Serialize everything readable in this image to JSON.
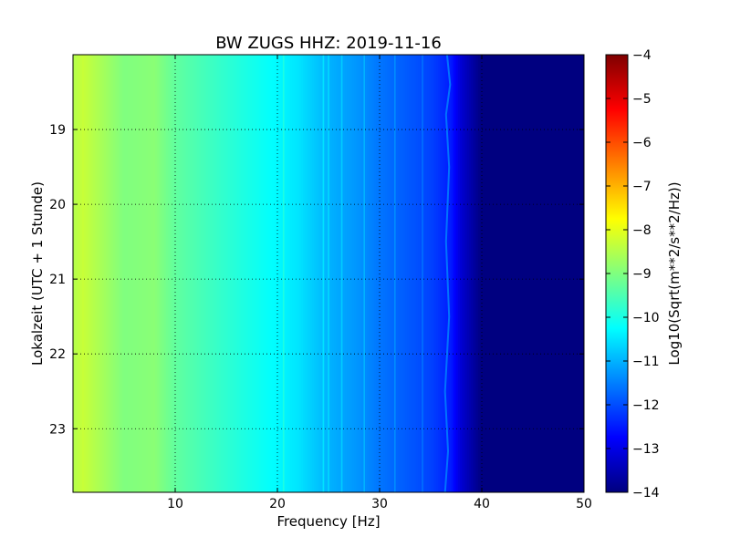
{
  "chart_data": {
    "type": "heatmap",
    "title": "BW ZUGS HHZ: 2019-11-16",
    "xlabel": "Frequency [Hz]",
    "ylabel": "Lokalzeit (UTC + 1 Stunde)",
    "xlim": [
      0,
      50
    ],
    "ylim": [
      18.0,
      23.85
    ],
    "y_inverted": true,
    "grid": true,
    "x_ticks": [
      10,
      20,
      30,
      40,
      50
    ],
    "x_tick_labels": [
      "10",
      "20",
      "30",
      "40",
      "50"
    ],
    "y_ticks": [
      19,
      20,
      21,
      22,
      23
    ],
    "y_tick_labels": [
      "19",
      "20",
      "21",
      "22",
      "23"
    ],
    "colormap": "jet",
    "value_profile_by_frequency": {
      "frequency_hz": [
        0,
        1,
        5,
        8,
        10,
        15,
        20,
        22,
        25,
        28,
        30,
        33,
        35,
        37,
        38,
        39,
        40,
        50
      ],
      "log10_amplitude": [
        -8.5,
        -8.3,
        -9.0,
        -8.9,
        -9.3,
        -9.8,
        -10.3,
        -10.5,
        -11.0,
        -11.3,
        -11.6,
        -11.9,
        -12.1,
        -12.5,
        -13.2,
        -13.6,
        -14.0,
        -14.0
      ]
    },
    "persistent_lines_hz": [
      20.6,
      24.5,
      25.0,
      26.3,
      28.5,
      31.5,
      34.2
    ],
    "wandering_line": {
      "frequency_hz_by_hour": [
        [
          18.0,
          36.6
        ],
        [
          18.4,
          36.9
        ],
        [
          18.8,
          36.5
        ],
        [
          19.5,
          36.8
        ],
        [
          20.5,
          36.5
        ],
        [
          21.5,
          36.8
        ],
        [
          22.5,
          36.4
        ],
        [
          23.3,
          36.7
        ],
        [
          23.85,
          36.4
        ]
      ]
    },
    "colorbar": {
      "label": "Log10(Sqrt(m**2/s**2/Hz))",
      "range": [
        -14,
        -4
      ],
      "ticks": [
        -4,
        -5,
        -6,
        -7,
        -8,
        -9,
        -10,
        -11,
        -12,
        -13,
        -14
      ],
      "tick_labels": [
        "−4",
        "−5",
        "−6",
        "−7",
        "−8",
        "−9",
        "−10",
        "−11",
        "−12",
        "−13",
        "−14"
      ]
    }
  }
}
